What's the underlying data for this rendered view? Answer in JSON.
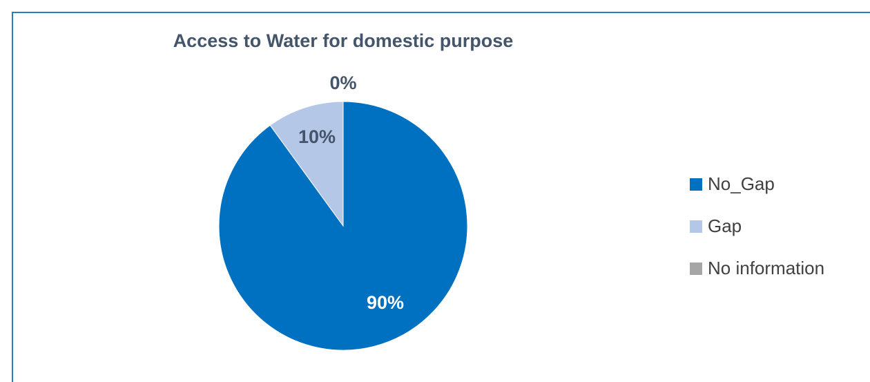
{
  "chart_data": {
    "type": "pie",
    "title": "Access to Water for domestic purpose",
    "categories": [
      "No_Gap",
      "Gap",
      "No information"
    ],
    "values": [
      90,
      10,
      0
    ],
    "data_labels": [
      "90%",
      "10%",
      "0%"
    ],
    "colors": [
      "#0070c0",
      "#b4c7e7",
      "#a6a6a6"
    ],
    "label_colors": [
      "#ffffff",
      "#44546a",
      "#44546a"
    ],
    "start_angle_deg": 0,
    "direction": "clockwise",
    "legend_position": "right"
  }
}
